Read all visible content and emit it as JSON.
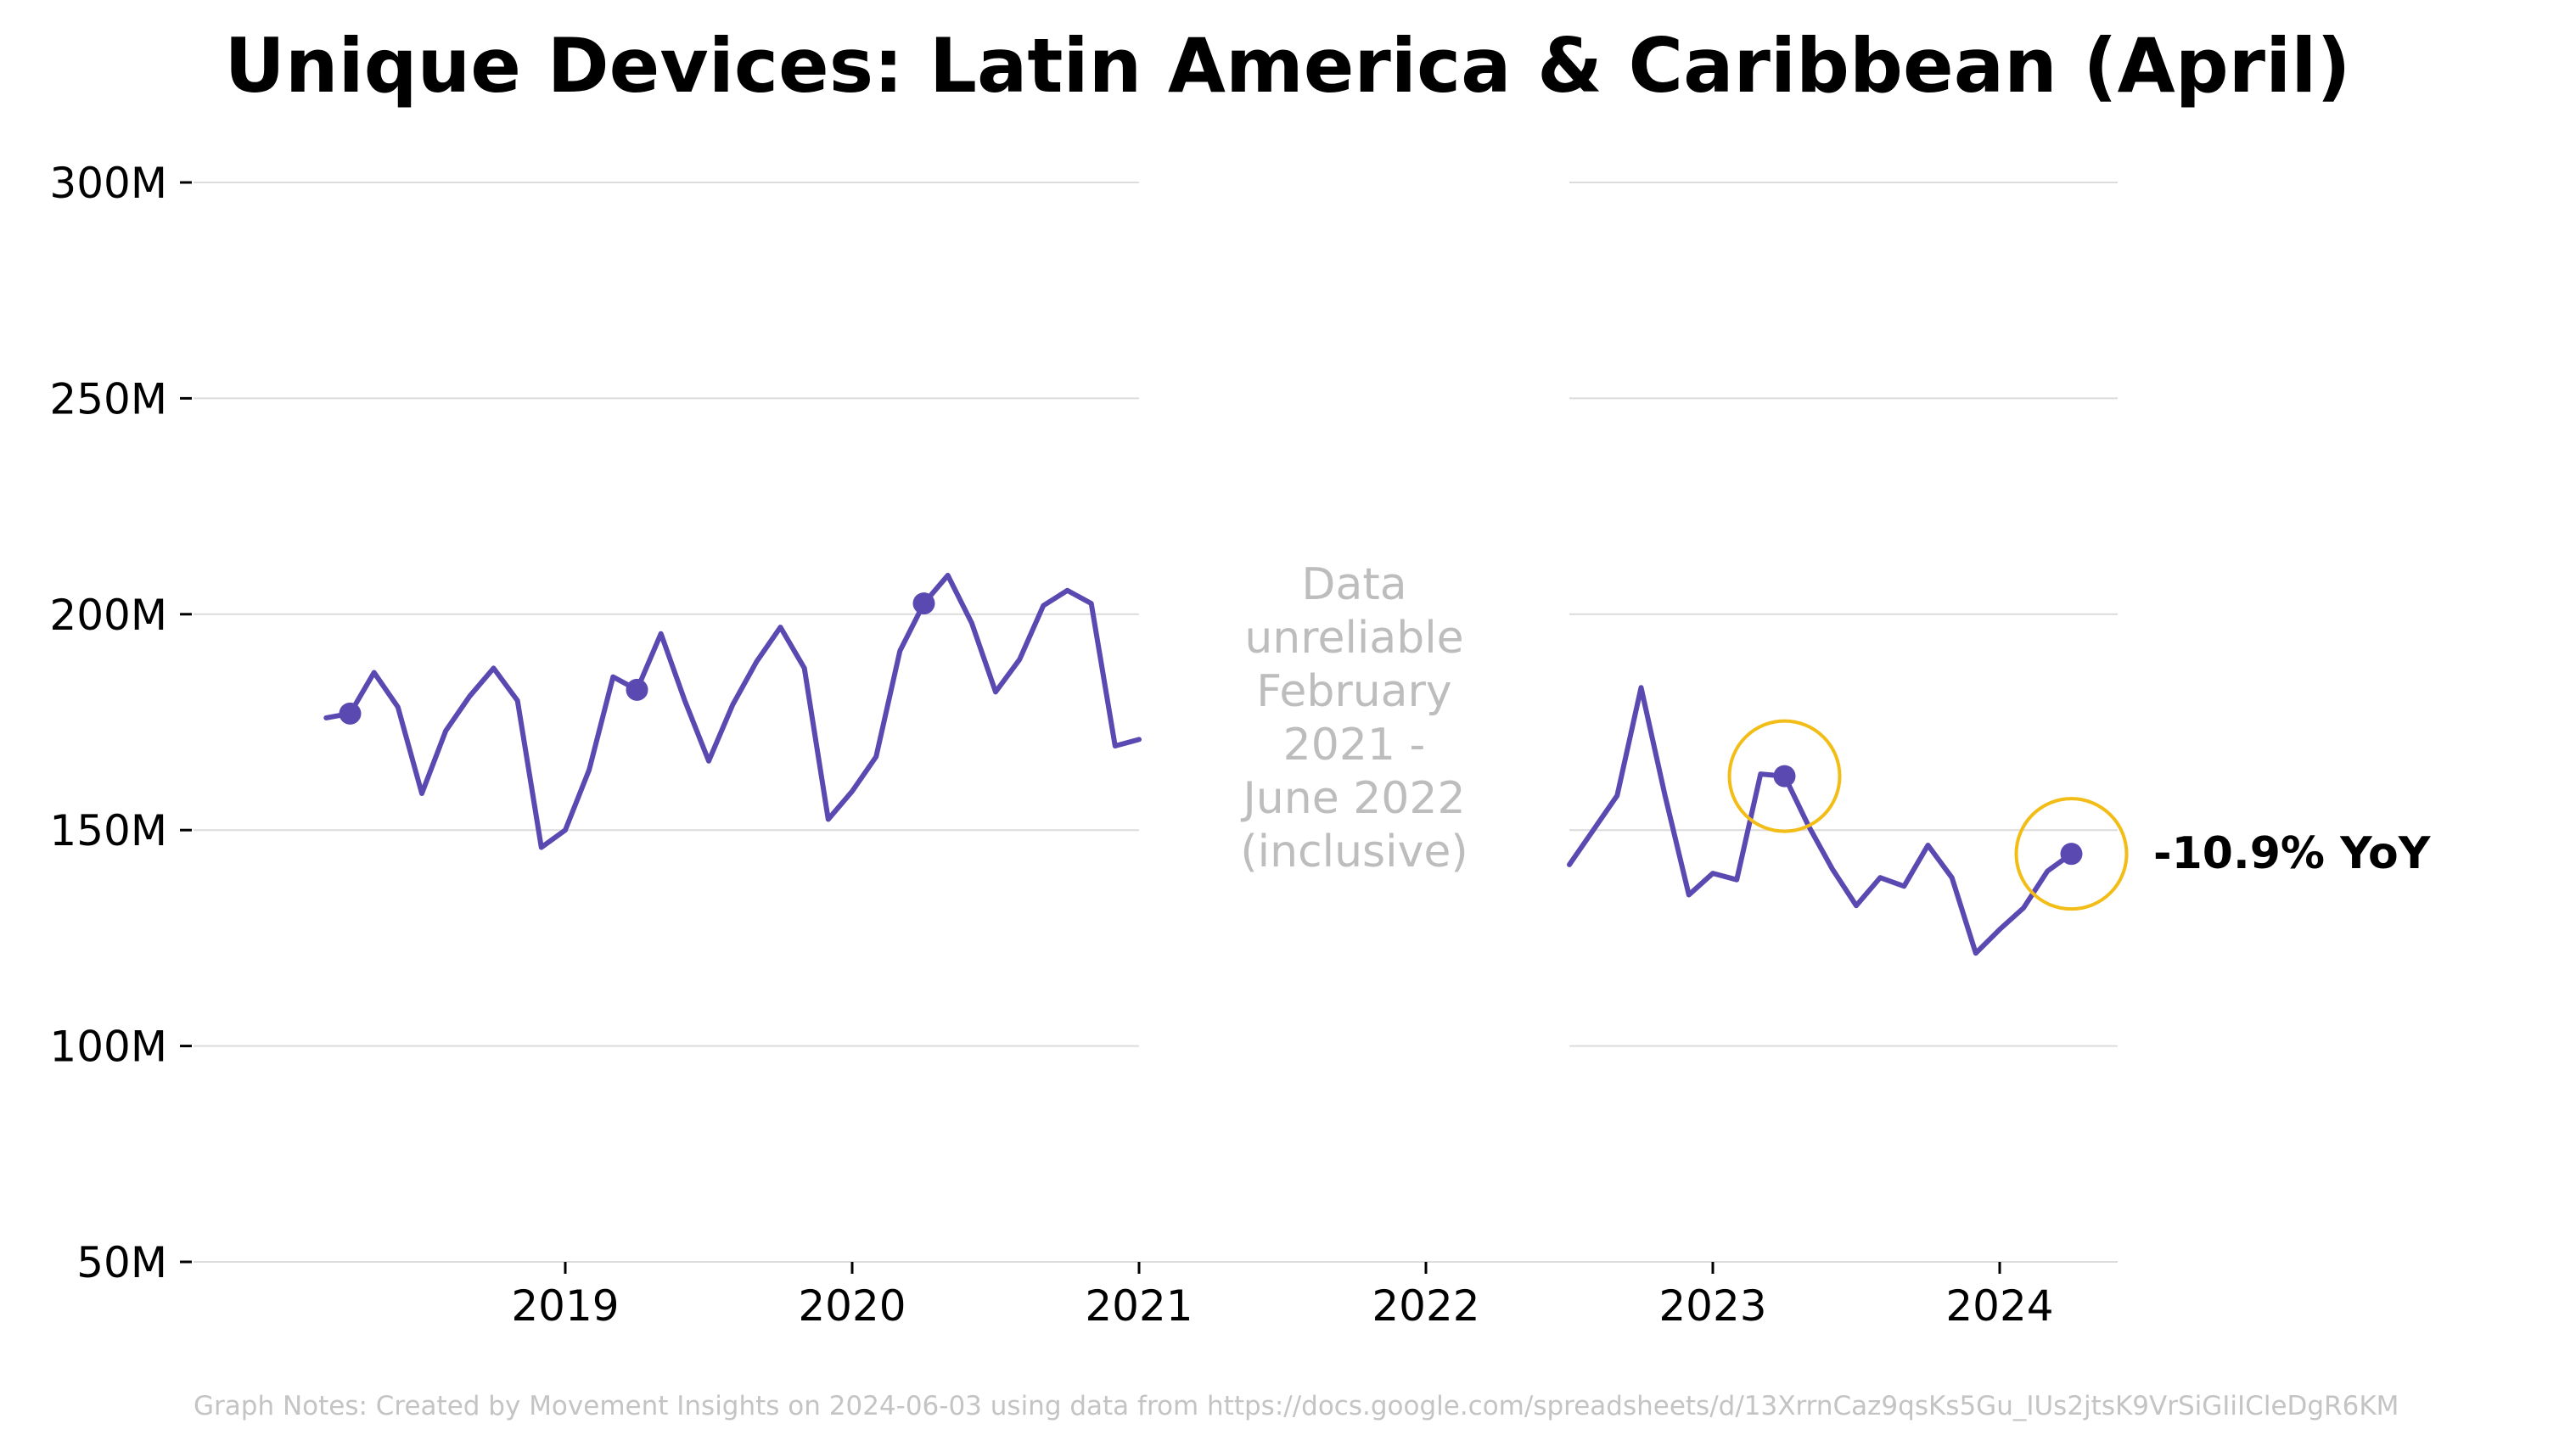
{
  "chart_data": {
    "type": "line",
    "title": "Unique Devices: Latin America & Caribbean (April)",
    "xlabel": "",
    "ylabel": "",
    "ylim": [
      50000000,
      300000000
    ],
    "xlim": [
      "2018-01-01",
      "2024-08-01"
    ],
    "grid": {
      "horizontal": true,
      "vertical": false
    },
    "yticks": [
      {
        "value": 300000000,
        "label": "300M"
      },
      {
        "value": 250000000,
        "label": "250M"
      },
      {
        "value": 200000000,
        "label": "200M"
      },
      {
        "value": 150000000,
        "label": "150M"
      },
      {
        "value": 100000000,
        "label": "100M"
      },
      {
        "value": 50000000,
        "label": "50M"
      }
    ],
    "xticks": [
      {
        "value": "2019-01-01",
        "label": "2019"
      },
      {
        "value": "2020-01-01",
        "label": "2020"
      },
      {
        "value": "2021-01-01",
        "label": "2021"
      },
      {
        "value": "2022-01-01",
        "label": "2022"
      },
      {
        "value": "2023-01-01",
        "label": "2023"
      },
      {
        "value": "2024-01-01",
        "label": "2024"
      }
    ],
    "series": [
      {
        "color": "#5b49b2",
        "segments": [
          [
            {
              "x": "2018-03-01",
              "y": 176000000
            },
            {
              "x": "2018-04-01",
              "y": 177000000
            },
            {
              "x": "2018-05-01",
              "y": 186500000
            },
            {
              "x": "2018-06-01",
              "y": 178500000
            },
            {
              "x": "2018-07-01",
              "y": 158500000
            },
            {
              "x": "2018-08-01",
              "y": 173000000
            },
            {
              "x": "2018-09-01",
              "y": 181000000
            },
            {
              "x": "2018-10-01",
              "y": 187500000
            },
            {
              "x": "2018-11-01",
              "y": 180000000
            },
            {
              "x": "2018-12-01",
              "y": 146000000
            },
            {
              "x": "2019-01-01",
              "y": 150000000
            },
            {
              "x": "2019-02-01",
              "y": 164000000
            },
            {
              "x": "2019-03-01",
              "y": 185500000
            },
            {
              "x": "2019-04-01",
              "y": 182500000
            },
            {
              "x": "2019-05-01",
              "y": 195500000
            },
            {
              "x": "2019-06-01",
              "y": 180000000
            },
            {
              "x": "2019-07-01",
              "y": 166000000
            },
            {
              "x": "2019-08-01",
              "y": 179000000
            },
            {
              "x": "2019-09-01",
              "y": 189000000
            },
            {
              "x": "2019-10-01",
              "y": 197000000
            },
            {
              "x": "2019-11-01",
              "y": 187500000
            },
            {
              "x": "2019-12-01",
              "y": 152500000
            },
            {
              "x": "2020-01-01",
              "y": 159000000
            },
            {
              "x": "2020-02-01",
              "y": 167000000
            },
            {
              "x": "2020-03-01",
              "y": 191500000
            },
            {
              "x": "2020-04-01",
              "y": 202500000
            },
            {
              "x": "2020-05-01",
              "y": 209000000
            },
            {
              "x": "2020-06-01",
              "y": 198000000
            },
            {
              "x": "2020-07-01",
              "y": 182000000
            },
            {
              "x": "2020-08-01",
              "y": 189500000
            },
            {
              "x": "2020-09-01",
              "y": 202000000
            },
            {
              "x": "2020-10-01",
              "y": 205500000
            },
            {
              "x": "2020-11-01",
              "y": 202500000
            },
            {
              "x": "2020-12-01",
              "y": 169500000
            },
            {
              "x": "2021-01-01",
              "y": 171000000
            }
          ],
          [
            {
              "x": "2022-07-01",
              "y": 142000000
            },
            {
              "x": "2022-08-01",
              "y": 150000000
            },
            {
              "x": "2022-09-01",
              "y": 158000000
            },
            {
              "x": "2022-10-01",
              "y": 183000000
            },
            {
              "x": "2022-11-01",
              "y": 158000000
            },
            {
              "x": "2022-12-01",
              "y": 135000000
            },
            {
              "x": "2023-01-01",
              "y": 140000000
            },
            {
              "x": "2023-02-01",
              "y": 138500000
            },
            {
              "x": "2023-03-01",
              "y": 163000000
            },
            {
              "x": "2023-04-01",
              "y": 162500000
            },
            {
              "x": "2023-05-01",
              "y": 151000000
            },
            {
              "x": "2023-06-01",
              "y": 141000000
            },
            {
              "x": "2023-07-01",
              "y": 132500000
            },
            {
              "x": "2023-08-01",
              "y": 139000000
            },
            {
              "x": "2023-09-01",
              "y": 137000000
            },
            {
              "x": "2023-10-01",
              "y": 146500000
            },
            {
              "x": "2023-11-01",
              "y": 139000000
            },
            {
              "x": "2023-12-01",
              "y": 121500000
            },
            {
              "x": "2024-01-01",
              "y": 127000000
            },
            {
              "x": "2024-02-01",
              "y": 132000000
            },
            {
              "x": "2024-03-01",
              "y": 140500000
            },
            {
              "x": "2024-04-01",
              "y": 144500000
            }
          ]
        ],
        "april_points": [
          {
            "x": "2018-04-01",
            "y": 177000000
          },
          {
            "x": "2019-04-01",
            "y": 182500000
          },
          {
            "x": "2020-04-01",
            "y": 202500000
          },
          {
            "x": "2023-04-01",
            "y": 162500000
          },
          {
            "x": "2024-04-01",
            "y": 144500000
          }
        ]
      }
    ],
    "highlighted_points": [
      {
        "x": "2023-04-01",
        "y": 162500000
      },
      {
        "x": "2024-04-01",
        "y": 144500000
      }
    ],
    "highlight_color": "#f2bd16",
    "data_gap": {
      "from": "2021-01-01",
      "to": "2022-07-01",
      "note_lines": [
        "Data",
        "unreliable",
        "February",
        "2021 -",
        "June 2022",
        "(inclusive)"
      ]
    },
    "annotation": {
      "text": "-10.9% YoY"
    },
    "footnote": "Graph Notes: Created by Movement Insights on 2024-06-03 using data from https://docs.google.com/spreadsheets/d/13XrrnCaz9qsKs5Gu_IUs2jtsK9VrSiGIiICleDgR6KM"
  }
}
